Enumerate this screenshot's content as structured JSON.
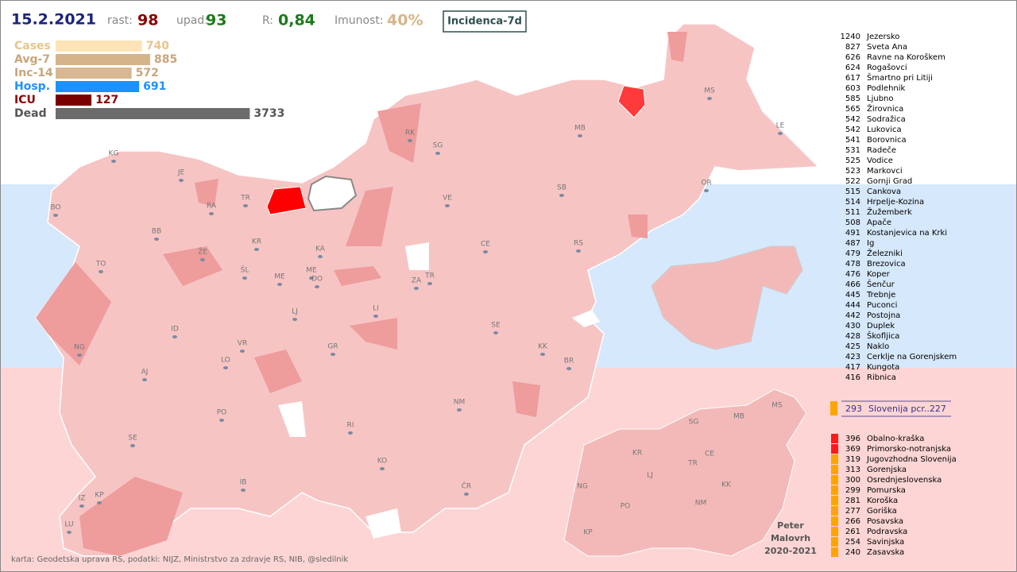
{
  "header": {
    "date": "15.2.2021",
    "rise_label": "rast:",
    "rise": 98,
    "fall_label": "upad:",
    "fall": 93,
    "r_label": "R:",
    "r": "0,84",
    "immunity_label": "Imunost:",
    "immunity": "40%",
    "button": "Incidenca-7d"
  },
  "stats": [
    {
      "name": "Cases",
      "value": 740,
      "color": "#fde3b5",
      "text_color": "#e8c48a"
    },
    {
      "name": "Avg-7",
      "value": 885,
      "color": "#d6b48a",
      "text_color": "#caa57a"
    },
    {
      "name": "Inc-14",
      "value": 572,
      "color": "#d8b892",
      "text_color": "#caa57a"
    },
    {
      "name": "Hosp.",
      "value": 691,
      "color": "#1e90ff",
      "text_color": "#1e90ff"
    },
    {
      "name": "ICU",
      "value": 127,
      "color": "#7a0000",
      "text_color": "#8b0000"
    },
    {
      "name": "Dead",
      "value": 3733,
      "color": "#6b6b6b",
      "text_color": "#555555"
    }
  ],
  "municipalities": [
    {
      "value": 1240,
      "name": "Jezersko"
    },
    {
      "value": 827,
      "name": "Sveta Ana"
    },
    {
      "value": 626,
      "name": "Ravne na Koroškem"
    },
    {
      "value": 624,
      "name": "Rogašovci"
    },
    {
      "value": 617,
      "name": "Šmartno pri Litiji"
    },
    {
      "value": 603,
      "name": "Podlehnik"
    },
    {
      "value": 585,
      "name": "Ljubno"
    },
    {
      "value": 565,
      "name": "Žirovnica"
    },
    {
      "value": 542,
      "name": "Sodražica"
    },
    {
      "value": 542,
      "name": "Lukovica"
    },
    {
      "value": 541,
      "name": "Borovnica"
    },
    {
      "value": 531,
      "name": "Radeče"
    },
    {
      "value": 525,
      "name": "Vodice"
    },
    {
      "value": 523,
      "name": "Markovci"
    },
    {
      "value": 522,
      "name": "Gornji Grad"
    },
    {
      "value": 515,
      "name": "Cankova"
    },
    {
      "value": 514,
      "name": "Hrpelje-Kozina"
    },
    {
      "value": 511,
      "name": "Žužemberk"
    },
    {
      "value": 508,
      "name": "Apače"
    },
    {
      "value": 491,
      "name": "Kostanjevica na Krki"
    },
    {
      "value": 487,
      "name": "Ig"
    },
    {
      "value": 479,
      "name": "Železniki"
    },
    {
      "value": 478,
      "name": "Brezovica"
    },
    {
      "value": 476,
      "name": "Koper"
    },
    {
      "value": 466,
      "name": "Šenčur"
    },
    {
      "value": 445,
      "name": "Trebnje"
    },
    {
      "value": 444,
      "name": "Puconci"
    },
    {
      "value": 442,
      "name": "Postojna"
    },
    {
      "value": 430,
      "name": "Duplek"
    },
    {
      "value": 428,
      "name": "Škofljica"
    },
    {
      "value": 425,
      "name": "Naklo"
    },
    {
      "value": 423,
      "name": "Cerklje na Gorenjskem"
    },
    {
      "value": 417,
      "name": "Kungota"
    },
    {
      "value": 416,
      "name": "Ribnica"
    }
  ],
  "summary": {
    "value": 293,
    "label": "Slovenija pcr..227"
  },
  "regions": [
    {
      "value": 396,
      "name": "Obalno-kraška",
      "color": "#ff1a1a"
    },
    {
      "value": 369,
      "name": "Primorsko-notranjska",
      "color": "#ff1a1a"
    },
    {
      "value": 319,
      "name": "Jugovzhodna Slovenija",
      "color": "#ffa500"
    },
    {
      "value": 313,
      "name": "Gorenjska",
      "color": "#ffa500"
    },
    {
      "value": 300,
      "name": "Osrednjeslovenska",
      "color": "#ffa500"
    },
    {
      "value": 299,
      "name": "Pomurska",
      "color": "#ffa500"
    },
    {
      "value": 281,
      "name": "Koroška",
      "color": "#ffa500"
    },
    {
      "value": 277,
      "name": "Goriška",
      "color": "#ffa500"
    },
    {
      "value": 266,
      "name": "Posavska",
      "color": "#ffa500"
    },
    {
      "value": 261,
      "name": "Podravska",
      "color": "#ffa500"
    },
    {
      "value": 254,
      "name": "Savinjska",
      "color": "#ffa500"
    },
    {
      "value": 240,
      "name": "Zasavska",
      "color": "#ffa500"
    }
  ],
  "map_labels": [
    "KG",
    "JE",
    "BO",
    "RA",
    "TR",
    "RK",
    "SG",
    "MB",
    "MS",
    "LE",
    "VE",
    "SB",
    "OR",
    "BB",
    "KR",
    "KA",
    "CE",
    "RS",
    "TO",
    "ŽE",
    "ŠL",
    "ME",
    "ME",
    "DO",
    "ZA",
    "TR",
    "LJ",
    "LI",
    "SE",
    "ID",
    "NG",
    "VR",
    "GR",
    "KK",
    "BR",
    "LO",
    "AJ",
    "PO",
    "NM",
    "RI",
    "SE",
    "KO",
    "IB",
    "ČR",
    "KP",
    "IZ",
    "LU"
  ],
  "small_map_labels": [
    "MS",
    "SG",
    "MB",
    "KR",
    "CE",
    "TR",
    "LJ",
    "NG",
    "KK",
    "PO",
    "NM",
    "KP"
  ],
  "author": [
    "Peter",
    "Malovrh",
    "2020-2021"
  ],
  "source": "karta: Geodetska uprava RS,  podatki: NIJZ, Ministrstvo za zdravje RS, NIB, @sledilnik"
}
